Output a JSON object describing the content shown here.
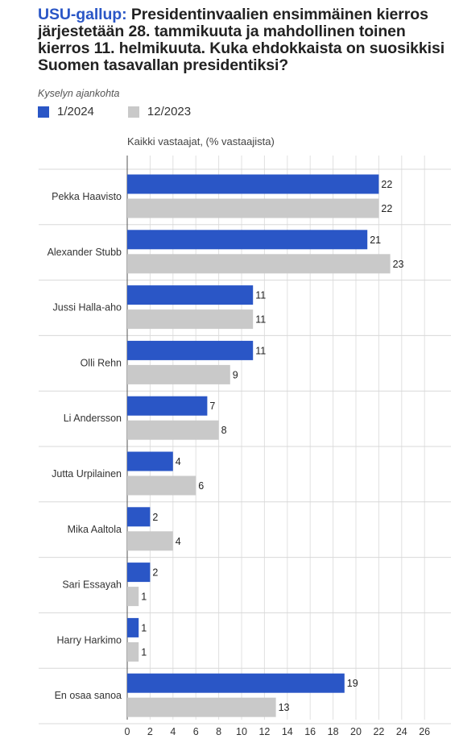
{
  "header": {
    "brand": "USU-gallup:",
    "title": "Presidentinvaalien ensimmäinen kierros järjestetään 28. tammikuuta ja mahdollinen toinen kierros 11. helmikuuta. Kuka ehdokkaista on suosikkisi Suomen tasavallan presidentiksi?",
    "subtitle": "Kyselyn ajankohta"
  },
  "colors": {
    "series1": "#2a56c6",
    "series2": "#c9c9c9"
  },
  "chart_data": {
    "type": "bar",
    "orientation": "horizontal",
    "xlabel": "Kaikki vastaajat, (% vastaajista)",
    "xlim": [
      0,
      27
    ],
    "xticks": [
      0,
      2,
      4,
      6,
      8,
      10,
      12,
      14,
      16,
      18,
      20,
      22,
      24,
      26
    ],
    "categories": [
      "Pekka Haavisto",
      "Alexander Stubb",
      "Jussi Halla-aho",
      "Olli Rehn",
      "Li Andersson",
      "Jutta Urpilainen",
      "Mika Aaltola",
      "Sari Essayah",
      "Harry Harkimo",
      "En osaa sanoa"
    ],
    "series": [
      {
        "name": "1/2024",
        "values": [
          22,
          21,
          11,
          11,
          7,
          4,
          2,
          2,
          1,
          19
        ]
      },
      {
        "name": "12/2023",
        "values": [
          22,
          23,
          11,
          9,
          8,
          6,
          4,
          1,
          1,
          13
        ]
      }
    ],
    "grid": "vertical",
    "legend": "top-left"
  }
}
